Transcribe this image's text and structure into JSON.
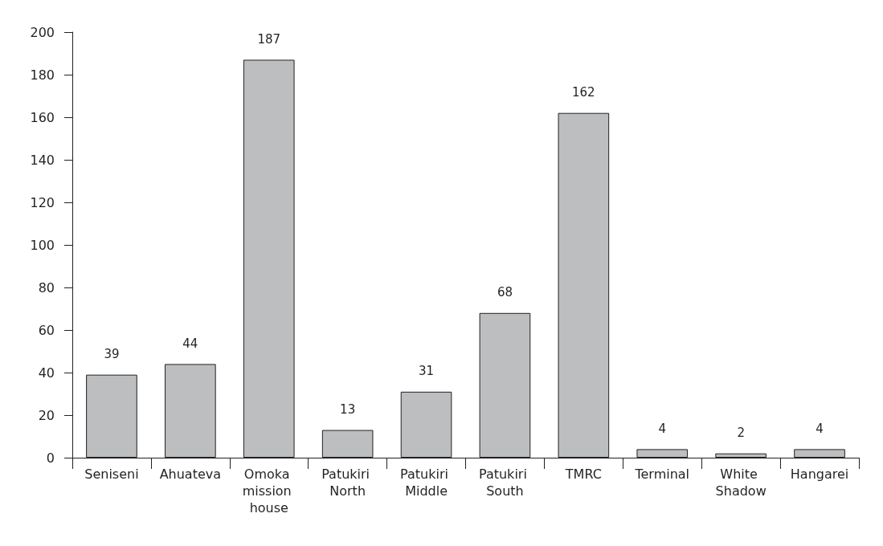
{
  "chart_data": {
    "type": "bar",
    "categories": [
      "Seniseni",
      "Ahuateva",
      "Omoka mission house",
      "Patukiri North",
      "Patukiri Middle",
      "Patukiri South",
      "TMRC",
      "Terminal",
      "White Shadow",
      "Hangarei"
    ],
    "values": [
      39,
      44,
      187,
      13,
      31,
      68,
      162,
      4,
      2,
      4
    ],
    "color": "#bcbec0",
    "ylim": [
      0,
      200
    ],
    "yticks": [
      0,
      20,
      40,
      60,
      80,
      100,
      120,
      140,
      160,
      180,
      200
    ],
    "data_labels": true
  }
}
